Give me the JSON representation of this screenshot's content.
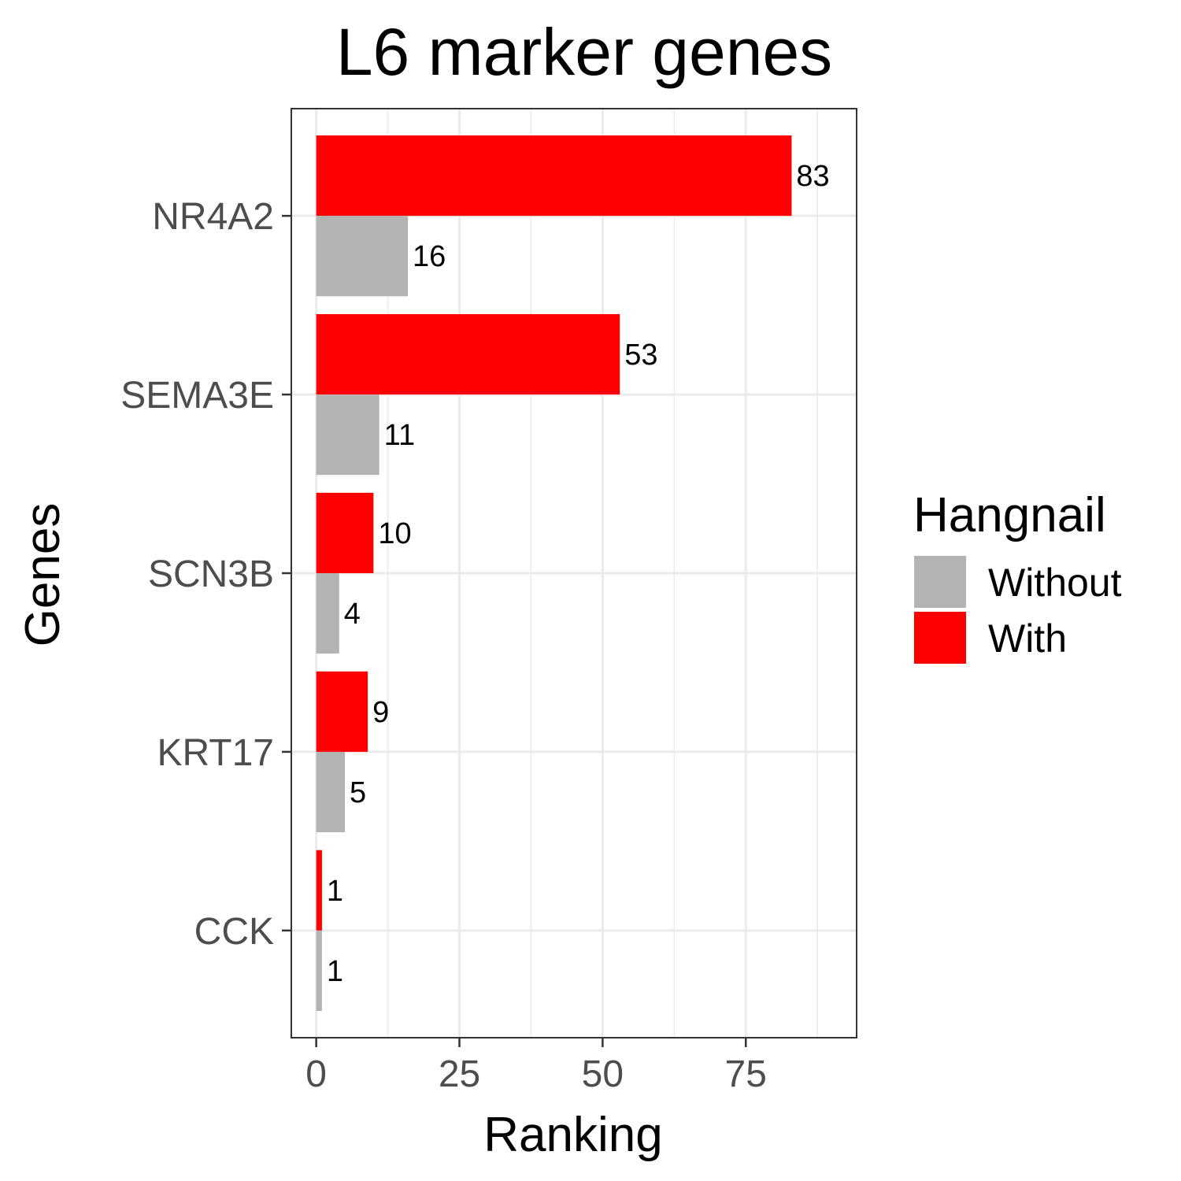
{
  "chart_data": {
    "type": "bar",
    "orientation": "horizontal",
    "title": "L6 marker genes",
    "xlabel": "Ranking",
    "ylabel": "Genes",
    "categories": [
      "NR4A2",
      "SEMA3E",
      "SCN3B",
      "KRT17",
      "CCK"
    ],
    "series": [
      {
        "name": "Without",
        "color": "#b3b3b3",
        "values": [
          16,
          11,
          4,
          5,
          1
        ]
      },
      {
        "name": "With",
        "color": "#ff0000",
        "values": [
          83,
          53,
          10,
          9,
          1
        ]
      }
    ],
    "xlim": [
      -4.35,
      94.35
    ],
    "xticks": [
      0,
      25,
      50,
      75
    ],
    "grid": true,
    "legend": {
      "title": "Hangnail",
      "position": "right"
    }
  }
}
